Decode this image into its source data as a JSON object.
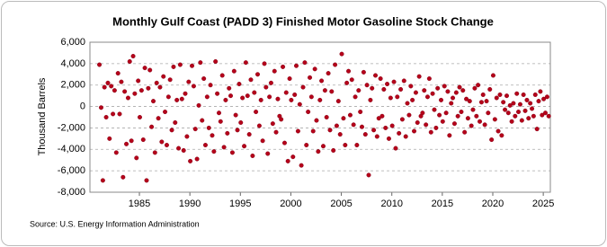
{
  "chart_data": {
    "type": "scatter",
    "title": "Monthly Gulf Coast (PADD 3) Finished Motor Gasoline Stock Change",
    "y_label": "Thousand Barrels",
    "source": "Source: U.S. Energy Information Administration",
    "color": "#b5001a",
    "grid": true,
    "xlim": [
      1980.1,
      2025.7
    ],
    "xticks": [
      1985,
      1990,
      1995,
      2000,
      2005,
      2010,
      2015,
      2020,
      2025
    ],
    "ylim": [
      -8000,
      6000
    ],
    "yticks": [
      {
        "value": -8000,
        "label": "-8,000"
      },
      {
        "value": -6000,
        "label": "-6,000"
      },
      {
        "value": -4000,
        "label": "-4,000"
      },
      {
        "value": -2000,
        "label": "-2,000"
      },
      0,
      {
        "value": 2000,
        "label": "2,000"
      },
      {
        "value": 4000,
        "label": "4,000"
      },
      {
        "value": 6000,
        "label": "6,000"
      }
    ],
    "x": [
      1981.04,
      1981.21,
      1981.38,
      1981.54,
      1981.71,
      1981.88,
      1982.04,
      1982.21,
      1982.38,
      1982.54,
      1982.71,
      1982.88,
      1983.04,
      1983.21,
      1983.38,
      1983.54,
      1983.71,
      1983.88,
      1984.04,
      1984.21,
      1984.38,
      1984.54,
      1984.71,
      1984.88,
      1985.04,
      1985.21,
      1985.38,
      1985.54,
      1985.71,
      1985.88,
      1986.04,
      1986.21,
      1986.38,
      1986.54,
      1986.71,
      1986.88,
      1987.04,
      1987.21,
      1987.38,
      1987.54,
      1987.71,
      1987.88,
      1988.04,
      1988.21,
      1988.38,
      1988.54,
      1988.71,
      1988.88,
      1989.04,
      1989.21,
      1989.38,
      1989.54,
      1989.71,
      1989.88,
      1990.04,
      1990.21,
      1990.38,
      1990.54,
      1990.71,
      1990.88,
      1991.04,
      1991.21,
      1991.38,
      1991.54,
      1991.71,
      1991.88,
      1992.04,
      1992.21,
      1992.38,
      1992.54,
      1992.71,
      1992.88,
      1993.04,
      1993.21,
      1993.38,
      1993.54,
      1993.71,
      1993.88,
      1994.04,
      1994.21,
      1994.38,
      1994.54,
      1994.71,
      1994.88,
      1995.04,
      1995.21,
      1995.38,
      1995.54,
      1995.71,
      1995.88,
      1996.04,
      1996.21,
      1996.38,
      1996.54,
      1996.71,
      1996.88,
      1997.04,
      1997.21,
      1997.38,
      1997.54,
      1997.71,
      1997.88,
      1998.04,
      1998.21,
      1998.38,
      1998.54,
      1998.71,
      1998.88,
      1999.04,
      1999.21,
      1999.38,
      1999.54,
      1999.71,
      1999.88,
      2000.04,
      2000.21,
      2000.38,
      2000.54,
      2000.71,
      2000.88,
      2001.04,
      2001.21,
      2001.38,
      2001.54,
      2001.71,
      2001.88,
      2002.04,
      2002.21,
      2002.38,
      2002.54,
      2002.71,
      2002.88,
      2003.04,
      2003.21,
      2003.38,
      2003.54,
      2003.71,
      2003.88,
      2004.04,
      2004.21,
      2004.38,
      2004.54,
      2004.71,
      2004.88,
      2005.04,
      2005.21,
      2005.38,
      2005.54,
      2005.71,
      2005.88,
      2006.04,
      2006.21,
      2006.38,
      2006.54,
      2006.71,
      2006.88,
      2007.04,
      2007.21,
      2007.38,
      2007.54,
      2007.71,
      2007.88,
      2008.04,
      2008.21,
      2008.38,
      2008.54,
      2008.71,
      2008.88,
      2009.04,
      2009.21,
      2009.38,
      2009.54,
      2009.71,
      2009.88,
      2010.04,
      2010.21,
      2010.38,
      2010.54,
      2010.71,
      2010.88,
      2011.04,
      2011.21,
      2011.38,
      2011.54,
      2011.71,
      2011.88,
      2012.04,
      2012.21,
      2012.38,
      2012.54,
      2012.71,
      2012.88,
      2013.04,
      2013.21,
      2013.38,
      2013.54,
      2013.71,
      2013.88,
      2014.04,
      2014.21,
      2014.38,
      2014.54,
      2014.71,
      2014.88,
      2015.04,
      2015.21,
      2015.38,
      2015.54,
      2015.71,
      2015.88,
      2016.04,
      2016.21,
      2016.38,
      2016.54,
      2016.71,
      2016.88,
      2017.04,
      2017.21,
      2017.38,
      2017.54,
      2017.71,
      2017.88,
      2018.04,
      2018.21,
      2018.38,
      2018.54,
      2018.71,
      2018.88,
      2019.04,
      2019.21,
      2019.38,
      2019.54,
      2019.71,
      2019.88,
      2020.04,
      2020.21,
      2020.38,
      2020.54,
      2020.71,
      2020.88,
      2021.04,
      2021.21,
      2021.38,
      2021.54,
      2021.71,
      2021.88,
      2022.04,
      2022.21,
      2022.38,
      2022.54,
      2022.71,
      2022.88,
      2023.04,
      2023.21,
      2023.38,
      2023.54,
      2023.71,
      2023.88,
      2024.04,
      2024.21,
      2024.38,
      2024.54,
      2024.71,
      2024.88,
      2025.04,
      2025.21,
      2025.38,
      2025.54
    ],
    "values": [
      3900,
      -100,
      -6900,
      1800,
      -1000,
      2200,
      -3000,
      1900,
      -700,
      1500,
      -4300,
      3100,
      -700,
      2300,
      -6600,
      1400,
      -3500,
      800,
      4200,
      -3200,
      4700,
      1200,
      -4800,
      2400,
      -1000,
      1500,
      -3100,
      3600,
      -6900,
      1700,
      3400,
      -1900,
      500,
      -4300,
      2200,
      -1100,
      1800,
      -3300,
      2800,
      -500,
      -3600,
      900,
      2500,
      -2200,
      3700,
      -1500,
      600,
      -3900,
      3900,
      700,
      -4100,
      1200,
      -2800,
      2300,
      -5100,
      3800,
      1900,
      -2100,
      -4900,
      100,
      4100,
      -1300,
      2600,
      -3600,
      900,
      -2000,
      2000,
      -2700,
      -4200,
      4200,
      1200,
      -600,
      -1400,
      2900,
      -3800,
      600,
      -2500,
      1700,
      1000,
      -4300,
      3300,
      -800,
      -2200,
      2100,
      -1500,
      800,
      -3700,
      4100,
      1000,
      -2600,
      2500,
      -4600,
      1300,
      -500,
      3000,
      -1800,
      600,
      -3200,
      4000,
      1800,
      -4400,
      900,
      2200,
      -1600,
      3300,
      -2400,
      700,
      -900,
      -1200,
      3700,
      -3400,
      1300,
      -5100,
      2600,
      600,
      -4700,
      1100,
      3800,
      -2300,
      200,
      -5500,
      1800,
      4100,
      -3600,
      -500,
      2700,
      900,
      -2300,
      3500,
      -1300,
      -4200,
      600,
      2400,
      -3700,
      1500,
      -1000,
      3100,
      -2200,
      1400,
      -4100,
      3900,
      -1800,
      500,
      -2600,
      4900,
      -1100,
      -3600,
      2200,
      3300,
      -800,
      2500,
      -1700,
      900,
      -3600,
      1500,
      -500,
      -1900,
      3200,
      -2600,
      2000,
      -6400,
      600,
      1700,
      -2200,
      2900,
      -2800,
      -1100,
      2600,
      -900,
      1600,
      -2000,
      2100,
      -3000,
      800,
      -1800,
      2300,
      -3900,
      900,
      -2500,
      1600,
      -1200,
      2400,
      -2800,
      300,
      -800,
      1900,
      600,
      -2300,
      1300,
      -1500,
      2800,
      -900,
      -600,
      1500,
      -1700,
      900,
      2600,
      -2400,
      1200,
      -300,
      -2000,
      1700,
      -800,
      600,
      -1400,
      1900,
      -600,
      1400,
      -2700,
      300,
      800,
      -1600,
      1300,
      -900,
      1800,
      -500,
      1500,
      -2400,
      700,
      -1100,
      500,
      -1800,
      -300,
      1700,
      -900,
      2000,
      -1400,
      400,
      1100,
      -1700,
      500,
      -600,
      1600,
      -3100,
      2900,
      -1200,
      800,
      -2300,
      1100,
      -2700,
      400,
      -300,
      1000,
      -600,
      100,
      -1400,
      300,
      -900,
      1200,
      -500,
      200,
      -1300,
      1100,
      -400,
      600,
      -1100,
      300,
      -200,
      -900,
      1100,
      -2100,
      500,
      1400,
      -800,
      700,
      -600,
      900,
      -900
    ]
  }
}
